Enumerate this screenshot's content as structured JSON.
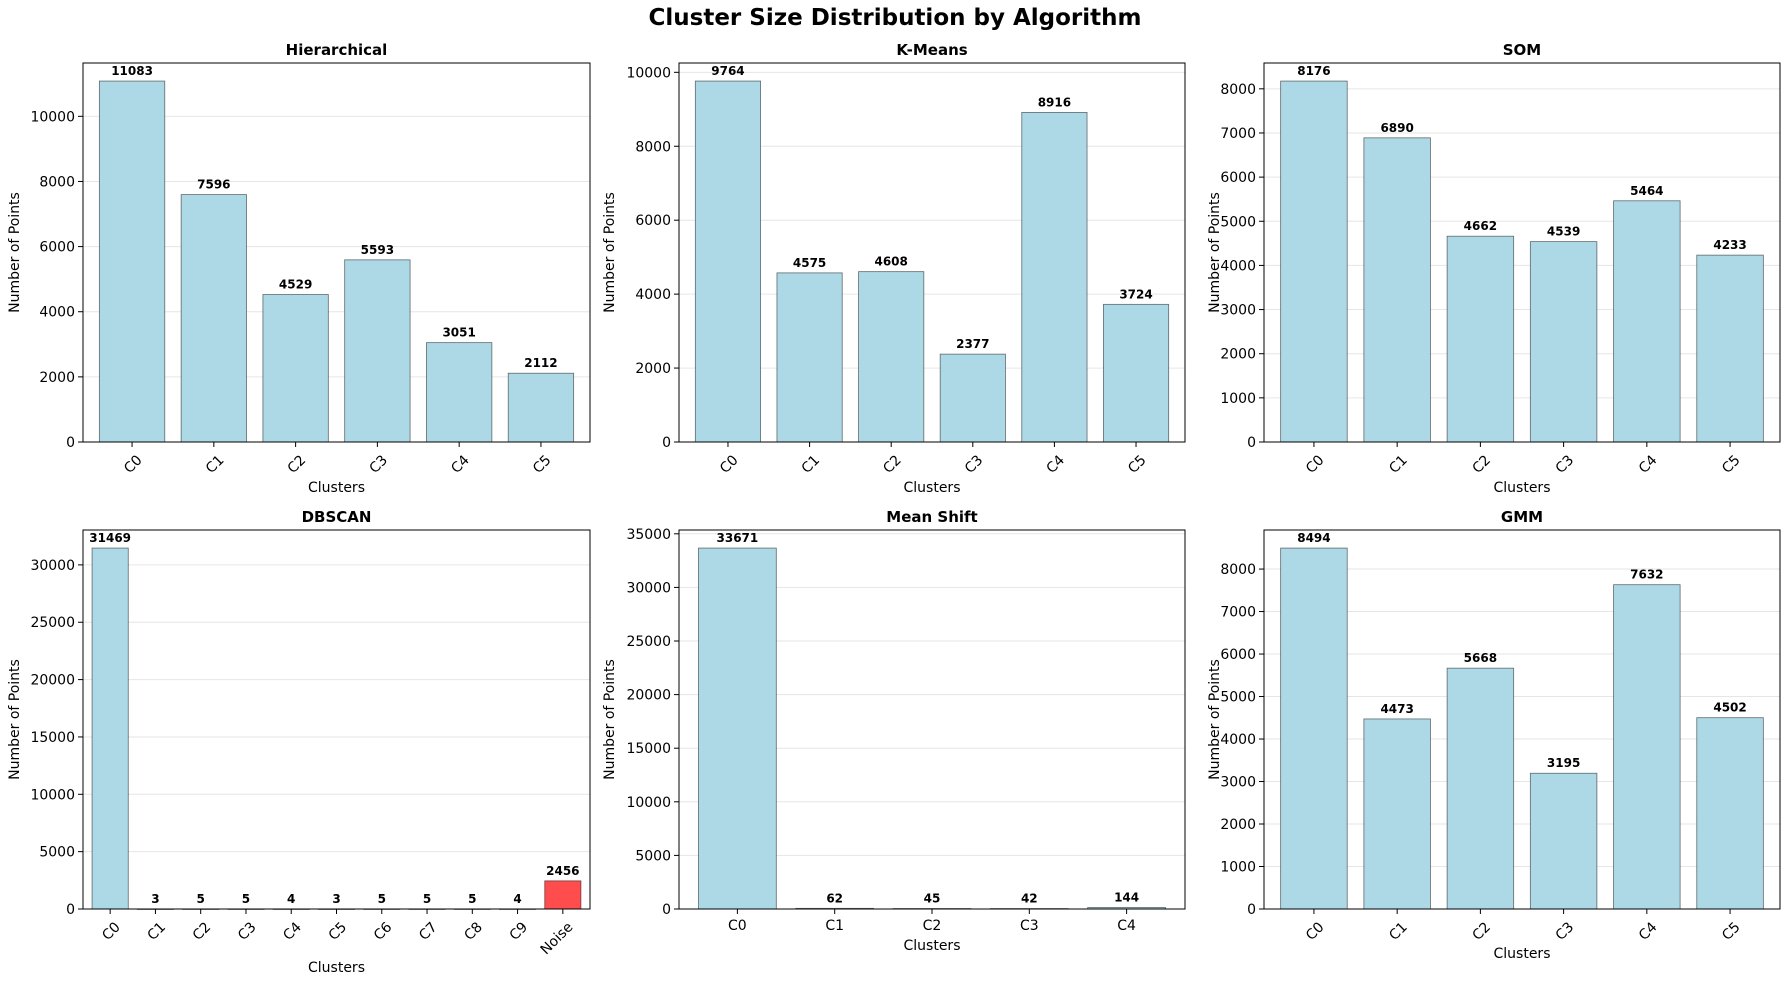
{
  "figure": {
    "title": "Cluster Size Distribution by Algorithm"
  },
  "colors": {
    "bar": "#add8e6",
    "bar_edge": "#000000",
    "noise": "#ff4c4c",
    "grid": "#e6e6e6"
  },
  "chart_data": [
    {
      "type": "bar",
      "title": "Hierarchical",
      "xlabel": "Clusters",
      "ylabel": "Number of Points",
      "categories": [
        "C0",
        "C1",
        "C2",
        "C3",
        "C4",
        "C5"
      ],
      "values": [
        11083,
        7596,
        4529,
        5593,
        3051,
        2112
      ],
      "ylim": [
        0,
        11637
      ],
      "yticks": [
        0,
        2000,
        4000,
        6000,
        8000,
        10000
      ],
      "xtick_rotation": 45,
      "grid": "y"
    },
    {
      "type": "bar",
      "title": "K-Means",
      "xlabel": "Clusters",
      "ylabel": "Number of Points",
      "categories": [
        "C0",
        "C1",
        "C2",
        "C3",
        "C4",
        "C5"
      ],
      "values": [
        9764,
        4575,
        4608,
        2377,
        8916,
        3724
      ],
      "ylim": [
        0,
        10252
      ],
      "yticks": [
        0,
        2000,
        4000,
        6000,
        8000,
        10000
      ],
      "xtick_rotation": 45,
      "grid": "y"
    },
    {
      "type": "bar",
      "title": "SOM",
      "xlabel": "Clusters",
      "ylabel": "Number of Points",
      "categories": [
        "C0",
        "C1",
        "C2",
        "C3",
        "C4",
        "C5"
      ],
      "values": [
        8176,
        6890,
        4662,
        4539,
        5464,
        4233
      ],
      "ylim": [
        0,
        8585
      ],
      "yticks": [
        0,
        1000,
        2000,
        3000,
        4000,
        5000,
        6000,
        7000,
        8000
      ],
      "xtick_rotation": 45,
      "grid": "y"
    },
    {
      "type": "bar",
      "title": "DBSCAN",
      "xlabel": "Clusters",
      "ylabel": "Number of Points",
      "categories": [
        "C0",
        "C1",
        "C2",
        "C3",
        "C4",
        "C5",
        "C6",
        "C7",
        "C8",
        "C9",
        "Noise"
      ],
      "values": [
        31469,
        3,
        5,
        5,
        4,
        3,
        5,
        5,
        5,
        4,
        2456
      ],
      "highlight": [
        "Noise"
      ],
      "ylim": [
        0,
        33042
      ],
      "yticks": [
        0,
        5000,
        10000,
        15000,
        20000,
        25000,
        30000
      ],
      "xtick_rotation": 45,
      "grid": "y"
    },
    {
      "type": "bar",
      "title": "Mean Shift",
      "xlabel": "Clusters",
      "ylabel": "Number of Points",
      "categories": [
        "C0",
        "C1",
        "C2",
        "C3",
        "C4"
      ],
      "values": [
        33671,
        62,
        45,
        42,
        144
      ],
      "ylim": [
        0,
        35355
      ],
      "yticks": [
        0,
        5000,
        10000,
        15000,
        20000,
        25000,
        30000,
        35000
      ],
      "xtick_rotation": 0,
      "grid": "y"
    },
    {
      "type": "bar",
      "title": "GMM",
      "xlabel": "Clusters",
      "ylabel": "Number of Points",
      "categories": [
        "C0",
        "C1",
        "C2",
        "C3",
        "C4",
        "C5"
      ],
      "values": [
        8494,
        4473,
        5668,
        3195,
        7632,
        4502
      ],
      "ylim": [
        0,
        8919
      ],
      "yticks": [
        0,
        1000,
        2000,
        3000,
        4000,
        5000,
        6000,
        7000,
        8000
      ],
      "xtick_rotation": 45,
      "grid": "y"
    }
  ]
}
